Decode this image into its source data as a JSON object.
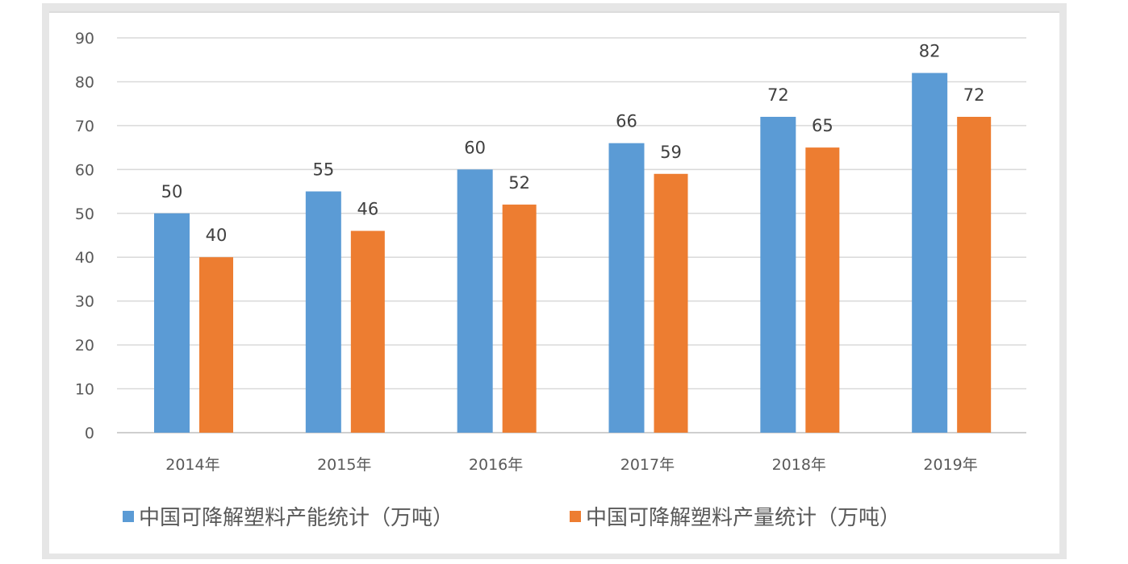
{
  "chart_data": {
    "type": "bar",
    "categories": [
      "2014年",
      "2015年",
      "2016年",
      "2017年",
      "2018年",
      "2019年"
    ],
    "series": [
      {
        "name": "中国可降解塑料产能统计（万吨）",
        "values": [
          50,
          55,
          60,
          66,
          72,
          82
        ],
        "color": "#5b9bd5"
      },
      {
        "name": "中国可降解塑料产量统计（万吨）",
        "values": [
          40,
          46,
          52,
          59,
          65,
          72
        ],
        "color": "#ed7d31"
      }
    ],
    "ylim": [
      0,
      90
    ],
    "yticks": [
      0,
      10,
      20,
      30,
      40,
      50,
      60,
      70,
      80,
      90
    ],
    "grid": true,
    "data_labels": true,
    "legend": "bottom"
  }
}
